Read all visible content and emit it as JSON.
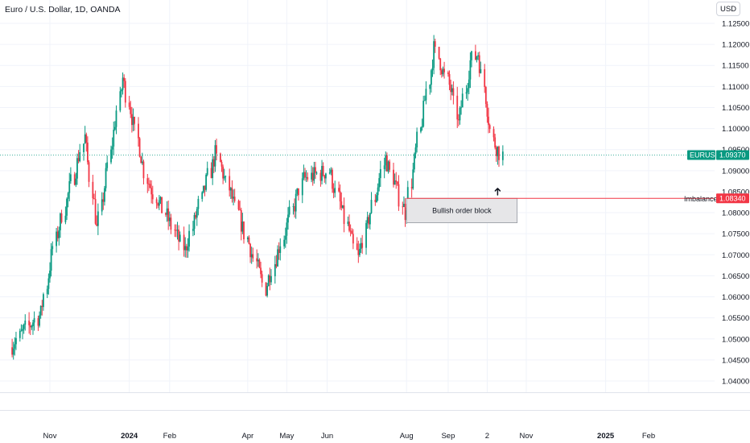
{
  "header": {
    "title": "Euro / U.S. Dollar, 1D, OANDA",
    "currency_button": "USD"
  },
  "colors": {
    "up": "#089981",
    "down": "#f23645",
    "grid": "#f0f3fa",
    "axis_text": "#131722",
    "last_price_line": "#089981",
    "imbalance": "#f23645",
    "order_block_fill": "#e6e6e8",
    "order_block_border": "#9598a1"
  },
  "chart_data": {
    "type": "candlestick",
    "symbol": "EURUSD",
    "yaxis": {
      "ticks": [
        "1.12500",
        "1.12000",
        "1.11500",
        "1.11000",
        "1.10500",
        "1.10000",
        "1.09500",
        "1.09000",
        "1.08500",
        "1.08000",
        "1.07500",
        "1.07000",
        "1.06500",
        "1.06000",
        "1.05500",
        "1.05000",
        "1.04500",
        "1.04000"
      ],
      "ylim": [
        1.037,
        1.127
      ]
    },
    "xaxis": {
      "ticks": [
        {
          "label": "Nov",
          "date": "2023-11-01"
        },
        {
          "label": "2024",
          "date": "2024-01-01",
          "bold": true
        },
        {
          "label": "Feb",
          "date": "2024-02-01"
        },
        {
          "label": "Apr",
          "date": "2024-04-01"
        },
        {
          "label": "May",
          "date": "2024-05-01"
        },
        {
          "label": "Jun",
          "date": "2024-06-01"
        },
        {
          "label": "Aug",
          "date": "2024-08-01"
        },
        {
          "label": "Sep",
          "date": "2024-09-02"
        },
        {
          "label": "2",
          "date": "2024-10-02"
        },
        {
          "label": "Nov",
          "date": "2024-11-01"
        },
        {
          "label": "2025",
          "date": "2025-01-01",
          "bold": true
        },
        {
          "label": "Feb",
          "date": "2025-02-03"
        }
      ]
    },
    "last_price": {
      "label": "EURUSD",
      "value": "1.09370"
    },
    "imbalance": {
      "label": "Imbalance",
      "value": "1.08340"
    },
    "order_block": {
      "label": "Bullish order block",
      "start": "2024-08-01",
      "end": "2024-10-25",
      "top": 1.0834,
      "bottom": 1.0776
    },
    "annotation_arrow": {
      "date": "2024-10-10",
      "price": 1.085
    },
    "anchors": [
      {
        "date": "2023-10-03",
        "close": 1.048
      },
      {
        "date": "2023-10-13",
        "close": 1.052
      },
      {
        "date": "2023-10-26",
        "close": 1.056
      },
      {
        "date": "2023-11-06",
        "close": 1.072
      },
      {
        "date": "2023-11-29",
        "close": 1.098
      },
      {
        "date": "2023-12-08",
        "close": 1.076
      },
      {
        "date": "2023-12-28",
        "close": 1.112
      },
      {
        "date": "2024-01-16",
        "close": 1.088
      },
      {
        "date": "2024-02-14",
        "close": 1.071
      },
      {
        "date": "2024-03-08",
        "close": 1.094
      },
      {
        "date": "2024-04-16",
        "close": 1.062
      },
      {
        "date": "2024-05-15",
        "close": 1.088
      },
      {
        "date": "2024-06-04",
        "close": 1.09
      },
      {
        "date": "2024-06-26",
        "close": 1.069
      },
      {
        "date": "2024-07-17",
        "close": 1.093
      },
      {
        "date": "2024-08-01",
        "close": 1.08
      },
      {
        "date": "2024-08-23",
        "close": 1.119
      },
      {
        "date": "2024-09-06",
        "close": 1.108
      },
      {
        "date": "2024-09-11",
        "close": 1.101
      },
      {
        "date": "2024-09-20",
        "close": 1.116
      },
      {
        "date": "2024-09-26",
        "close": 1.118
      },
      {
        "date": "2024-10-08",
        "close": 1.097
      },
      {
        "date": "2024-10-15",
        "close": 1.0937
      }
    ]
  }
}
